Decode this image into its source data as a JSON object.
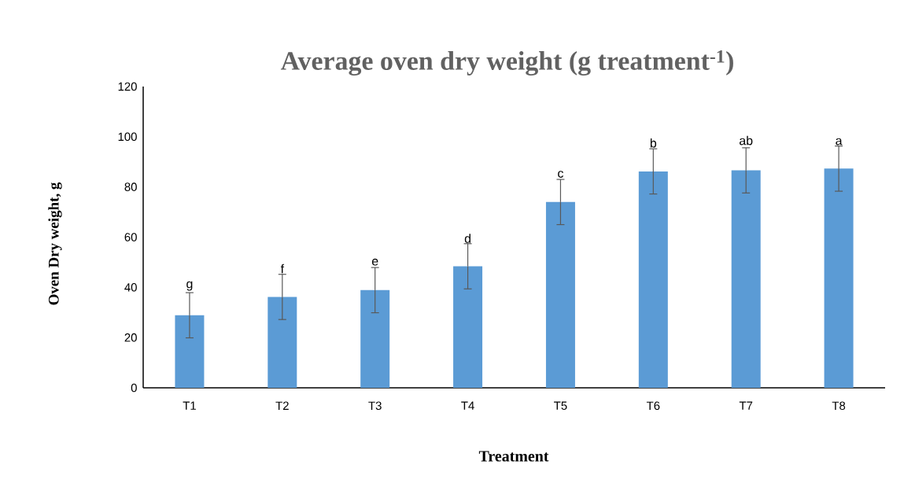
{
  "chart_data": {
    "type": "bar",
    "title": "Average oven dry weight (g treatment$^{-1}$)",
    "xlabel": "Treatment",
    "ylabel": "Oven Dry weight, g",
    "categories": [
      "T1",
      "T2",
      "T3",
      "T4",
      "T5",
      "T6",
      "T7",
      "T8"
    ],
    "values": [
      28.9,
      36.2,
      38.9,
      48.4,
      74.0,
      86.2,
      86.6,
      87.3
    ],
    "errors": [
      9,
      9,
      9,
      9,
      9,
      9,
      9,
      9
    ],
    "color": "#5b9bd5",
    "ylim": [
      0,
      120
    ],
    "yticks": [
      0,
      20,
      40,
      60,
      80,
      100,
      120
    ],
    "grid": false,
    "annotations": [
      {
        "text": "g",
        "x": "T1",
        "y": 38
      },
      {
        "text": "f",
        "x": "T2",
        "y": 45
      },
      {
        "text": "e",
        "x": "T3",
        "y": 48
      },
      {
        "text": "d",
        "x": "T4",
        "y": 57
      },
      {
        "text": "c",
        "x": "T5",
        "y": 83
      },
      {
        "text": "b",
        "x": "T6",
        "y": 95
      },
      {
        "text": "ab",
        "x": "T7",
        "y": 96
      },
      {
        "text": "a",
        "x": "T8",
        "y": 96
      }
    ]
  }
}
